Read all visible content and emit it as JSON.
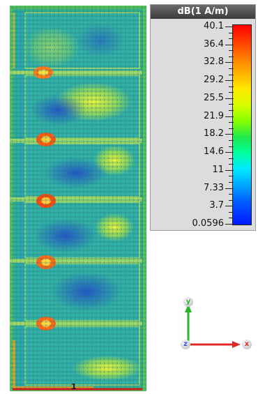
{
  "legend": {
    "title": "dB(1 A/m)",
    "ticks": [
      "40.1",
      "36.4",
      "32.8",
      "29.2",
      "25.5",
      "21.9",
      "18.2",
      "14.6",
      "11",
      "7.33",
      "3.7",
      "0.0596"
    ]
  },
  "axes": {
    "y_label": "y",
    "z_label": "z",
    "x_label": "x"
  },
  "scale_marker": "1",
  "colors": {
    "field_base": "#28a6a8",
    "colormap_top": "#ff0000",
    "colormap_bottom": "#0018ff",
    "x_axis": "#e02a2a",
    "y_axis": "#2bb52b",
    "z_axis": "#3a4ee0"
  }
}
